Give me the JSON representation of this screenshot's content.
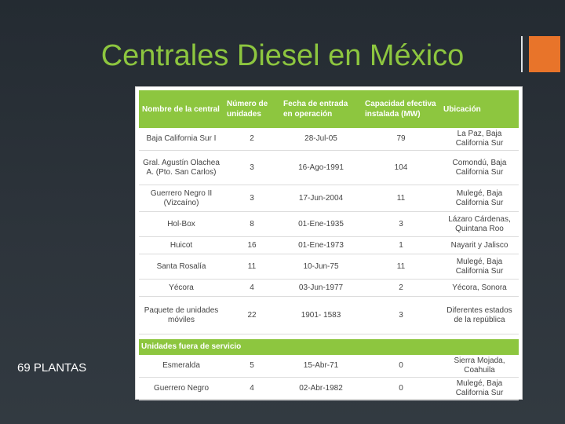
{
  "slide": {
    "title": "Centrales Diesel en México",
    "footer": "69 PLANTAS"
  },
  "table": {
    "headers": [
      "Nombre de la central",
      "Número de unidades",
      "Fecha de entrada en operación",
      "Capacidad efectiva instalada (MW)",
      "Ubicación"
    ],
    "rows": [
      {
        "name": "Baja California Sur I",
        "units": "2",
        "date": "28-Jul-05",
        "capacity": "79",
        "location": "La Paz, Baja California Sur"
      },
      {
        "name": "Gral. Agustín Olachea A. (Pto. San Carlos)",
        "units": "3",
        "date": "16-Ago-1991",
        "capacity": "104",
        "location": "Comondú, Baja California Sur"
      },
      {
        "name": "Guerrero Negro II (Vizcaíno)",
        "units": "3",
        "date": "17-Jun-2004",
        "capacity": "11",
        "location": "Mulegé, Baja California Sur"
      },
      {
        "name": "Hol-Box",
        "units": "8",
        "date": "01-Ene-1935",
        "capacity": "3",
        "location": "Lázaro Cárdenas, Quintana Roo"
      },
      {
        "name": "Huicot",
        "units": "16",
        "date": "01-Ene-1973",
        "capacity": "1",
        "location": "Nayarit y Jalisco"
      },
      {
        "name": "Santa Rosalía",
        "units": "11",
        "date": "10-Jun-75",
        "capacity": "11",
        "location": "Mulegé, Baja California Sur"
      },
      {
        "name": "Yécora",
        "units": "4",
        "date": "03-Jun-1977",
        "capacity": "2",
        "location": "Yécora, Sonora"
      },
      {
        "name": "Paquete de unidades móviles",
        "units": "22",
        "date": "1901- 1583",
        "capacity": "3",
        "location": "Diferentes estados de la república"
      }
    ],
    "out_of_service_label": "Unidades fuera de servicio",
    "out_of_service_rows": [
      {
        "name": "Esmeralda",
        "units": "5",
        "date": "15-Abr-71",
        "capacity": "0",
        "location": "Sierra Mojada, Coahuila"
      },
      {
        "name": "Guerrero Negro",
        "units": "4",
        "date": "02-Abr-1982",
        "capacity": "0",
        "location": "Mulegé, Baja California Sur"
      }
    ]
  },
  "colors": {
    "accent_green": "#8dc63f",
    "accent_orange": "#e8742a",
    "background": "#2a3138"
  }
}
